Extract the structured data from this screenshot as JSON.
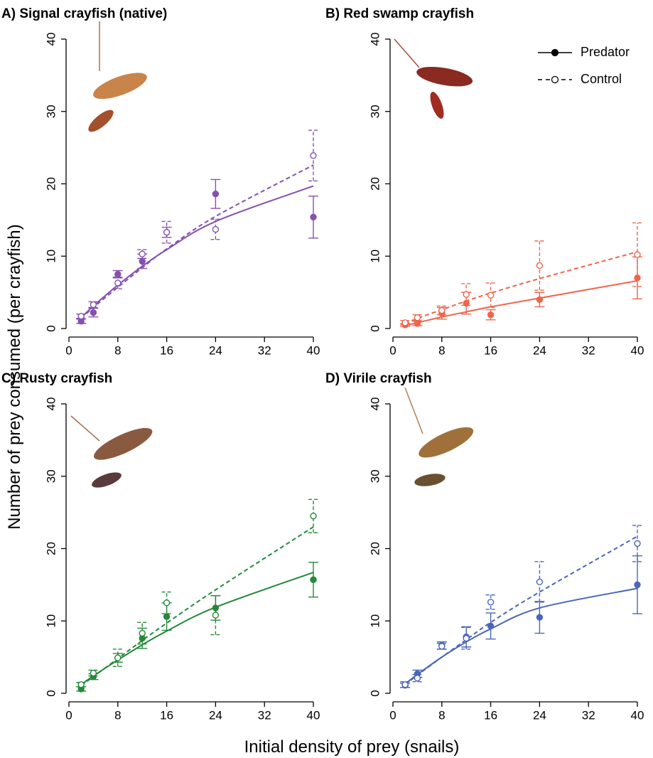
{
  "y_label": "Number of prey consumed (per crayfish)",
  "x_label": "Initial density of prey (snails)",
  "chart_data": [
    {
      "type": "line",
      "title": "A) Signal crayfish (native)",
      "x": [
        2,
        4,
        8,
        12,
        16,
        24,
        40
      ],
      "xlim": [
        0,
        40
      ],
      "xticks": [
        0,
        8,
        16,
        24,
        32,
        40
      ],
      "ylim": [
        0,
        40
      ],
      "yticks": [
        0,
        10,
        20,
        30,
        40
      ],
      "series": [
        {
          "color": "#8551b0",
          "style": "solid",
          "marker": "filled",
          "values": [
            1.0,
            2.2,
            7.5,
            9.3,
            13.3,
            18.6,
            15.4
          ],
          "errors": [
            0.3,
            0.6,
            0.5,
            1.0,
            0.7,
            2.0,
            2.9
          ],
          "fit": [
            1.5,
            3.1,
            6.0,
            8.6,
            10.9,
            14.8,
            19.7
          ]
        },
        {
          "color": "#8551b0",
          "style": "dashed",
          "marker": "open",
          "values": [
            1.7,
            3.3,
            6.3,
            10.3,
            13.3,
            13.7,
            23.9
          ],
          "errors": [
            0.3,
            0.4,
            0.8,
            0.6,
            1.5,
            1.4,
            3.5
          ],
          "fit": [
            1.4,
            2.9,
            5.7,
            8.4,
            11.0,
            15.5,
            22.6
          ]
        }
      ]
    },
    {
      "type": "line",
      "title": "B) Red swamp crayfish",
      "legend": "top-right",
      "x": [
        2,
        4,
        8,
        12,
        16,
        24,
        40
      ],
      "xlim": [
        0,
        40
      ],
      "xticks": [
        0,
        8,
        16,
        24,
        32,
        40
      ],
      "ylim": [
        0,
        40
      ],
      "yticks": [
        0,
        10,
        20,
        30,
        40
      ],
      "series": [
        {
          "name": "Predator",
          "color": "#ef654c",
          "style": "solid",
          "marker": "filled",
          "values": [
            0.5,
            0.7,
            2.1,
            3.5,
            1.9,
            4.0,
            7.0
          ],
          "errors": [
            0.2,
            0.3,
            0.8,
            1.5,
            0.7,
            1.0,
            2.9
          ],
          "fit": [
            0.4,
            0.8,
            1.6,
            2.3,
            3.0,
            4.2,
            6.6
          ]
        },
        {
          "name": "Control",
          "color": "#ef654c",
          "style": "dashed",
          "marker": "open",
          "values": [
            0.8,
            1.5,
            2.5,
            4.7,
            4.6,
            8.7,
            10.2
          ],
          "errors": [
            0.3,
            0.4,
            0.6,
            1.5,
            1.7,
            3.4,
            4.4
          ],
          "fit": [
            0.7,
            1.4,
            2.6,
            3.8,
            4.9,
            6.9,
            10.6
          ]
        }
      ]
    },
    {
      "type": "line",
      "title": "C) Rusty crayfish",
      "x": [
        2,
        4,
        8,
        12,
        16,
        24,
        40
      ],
      "xlim": [
        0,
        40
      ],
      "xticks": [
        0,
        8,
        16,
        24,
        32,
        40
      ],
      "ylim": [
        0,
        40
      ],
      "yticks": [
        0,
        10,
        20,
        30,
        40
      ],
      "series": [
        {
          "color": "#24893a",
          "style": "solid",
          "marker": "filled",
          "values": [
            0.6,
            2.3,
            4.9,
            7.6,
            10.6,
            11.8,
            15.7
          ],
          "errors": [
            0.3,
            0.4,
            0.6,
            1.4,
            1.9,
            1.7,
            2.4
          ],
          "fit": [
            1.2,
            2.4,
            4.6,
            6.7,
            8.6,
            11.9,
            16.7
          ]
        },
        {
          "color": "#24893a",
          "style": "dashed",
          "marker": "open",
          "values": [
            1.2,
            2.8,
            4.9,
            8.3,
            12.5,
            10.8,
            24.5
          ],
          "errors": [
            0.3,
            0.4,
            1.2,
            1.5,
            1.5,
            2.7,
            2.3
          ],
          "fit": [
            1.1,
            2.3,
            4.8,
            7.3,
            9.7,
            14.3,
            23.0
          ]
        }
      ]
    },
    {
      "type": "line",
      "title": "D) Virile crayfish",
      "x": [
        2,
        4,
        8,
        12,
        16,
        24,
        40
      ],
      "xlim": [
        0,
        40
      ],
      "xticks": [
        0,
        8,
        16,
        24,
        32,
        40
      ],
      "ylim": [
        0,
        40
      ],
      "yticks": [
        0,
        10,
        20,
        30,
        40
      ],
      "series": [
        {
          "color": "#4a66b8",
          "style": "solid",
          "marker": "filled",
          "values": [
            1.1,
            2.7,
            6.6,
            7.8,
            9.3,
            10.5,
            15.0
          ],
          "errors": [
            0.3,
            0.5,
            0.5,
            1.4,
            1.8,
            2.2,
            4.0
          ],
          "fit": [
            1.3,
            2.6,
            5.0,
            7.1,
            8.9,
            11.8,
            14.5
          ]
        },
        {
          "color": "#4a66b8",
          "style": "dashed",
          "marker": "open",
          "values": [
            1.2,
            2.1,
            6.5,
            7.6,
            12.6,
            15.4,
            20.7
          ],
          "errors": [
            0.4,
            0.5,
            0.4,
            1.5,
            1.0,
            2.8,
            2.5
          ],
          "fit": [
            1.2,
            2.5,
            5.0,
            7.4,
            9.8,
            14.0,
            21.7
          ]
        }
      ]
    }
  ]
}
